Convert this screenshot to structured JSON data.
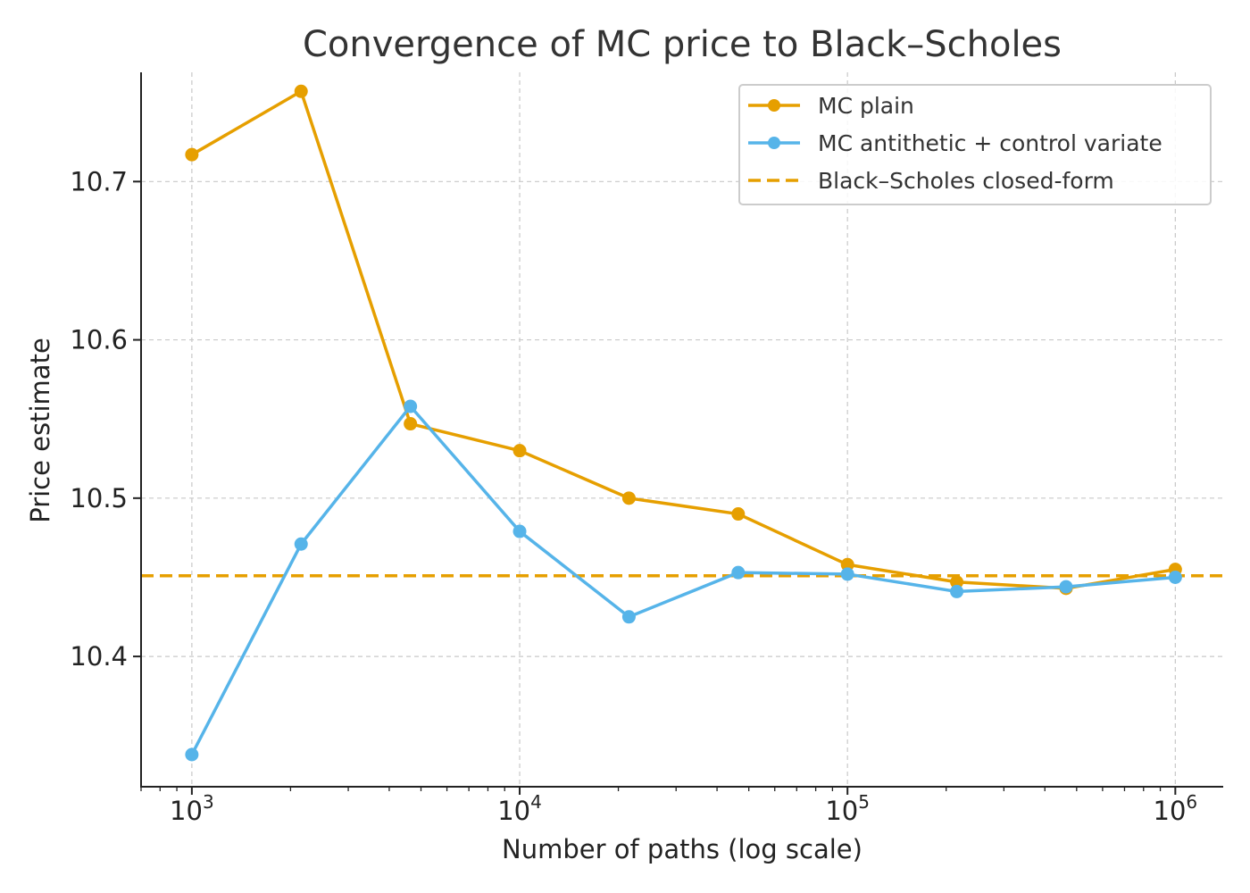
{
  "chart_data": {
    "type": "line",
    "title": "Convergence of MC price to Black–Scholes",
    "xlabel": "Number of paths (log scale)",
    "ylabel": "Price estimate",
    "xscale": "log",
    "xlim": [
      700,
      1400000
    ],
    "ylim": [
      10.338,
      10.769
    ],
    "x": [
      1000,
      2154,
      4642,
      10000,
      21544,
      46416,
      100000,
      215443,
      464159,
      1000000
    ],
    "x_ticks": [
      {
        "value": 1000,
        "base": "10",
        "exp": "3"
      },
      {
        "value": 10000,
        "base": "10",
        "exp": "4"
      },
      {
        "value": 100000,
        "base": "10",
        "exp": "5"
      },
      {
        "value": 1000000,
        "base": "10",
        "exp": "6"
      }
    ],
    "y_ticks": [
      {
        "value": 10.4,
        "label": "10.4"
      },
      {
        "value": 10.5,
        "label": "10.5"
      },
      {
        "value": 10.6,
        "label": "10.6"
      },
      {
        "value": 10.7,
        "label": "10.7"
      }
    ],
    "grid": true,
    "legend_position": "top-right",
    "series": [
      {
        "name": "MC plain",
        "color": "#E69F00",
        "style": "solid-marker",
        "values": [
          10.717,
          10.757,
          10.547,
          10.53,
          10.5,
          10.49,
          10.458,
          10.447,
          10.443,
          10.455
        ]
      },
      {
        "name": "MC antithetic + control variate",
        "color": "#56B4E9",
        "style": "solid-marker",
        "values": [
          10.338,
          10.471,
          10.558,
          10.479,
          10.425,
          10.453,
          10.452,
          10.441,
          10.444,
          10.45
        ]
      }
    ],
    "reference_line": {
      "name": "Black–Scholes closed-form",
      "color": "#E69F00",
      "style": "dashed",
      "value": 10.451
    }
  }
}
